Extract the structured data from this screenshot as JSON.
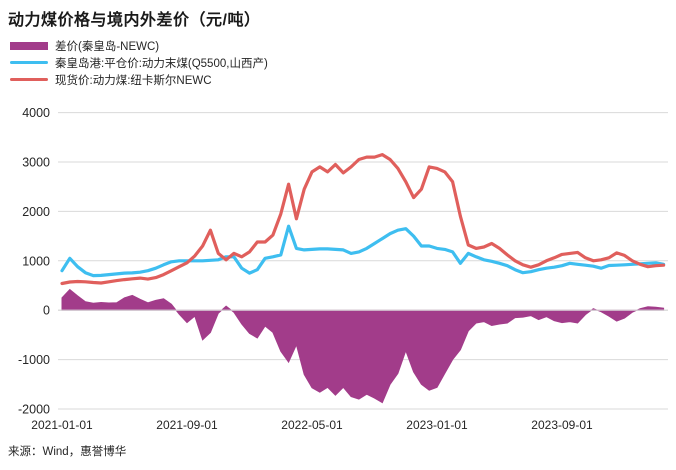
{
  "header": {
    "source_note": "来源：Wind，惠誉博华"
  },
  "chart_data": {
    "type": "line",
    "title": "动力煤价格与境内外差价（元/吨）",
    "unit": "元/吨",
    "x_start": "2021-01-01",
    "x_months_step": 0.5,
    "legend_position": "top-left",
    "grid": "horizontal-only",
    "grid_color": "#d9d9d9",
    "text_color": "#262626",
    "ylim": [
      -2000,
      4000
    ],
    "y_ticks": [
      4000,
      3000,
      2000,
      1000,
      0,
      -1000,
      -2000
    ],
    "x_ticks": [
      {
        "label": "2021-01-01",
        "month_offset": 0
      },
      {
        "label": "2021-09-01",
        "month_offset": 8
      },
      {
        "label": "2022-05-01",
        "month_offset": 16
      },
      {
        "label": "2023-01-01",
        "month_offset": 24
      },
      {
        "label": "2023-09-01",
        "month_offset": 32
      }
    ],
    "series": [
      {
        "name": "差价(秦皇岛-NEWC)",
        "type": "area",
        "color": "#A23C8A",
        "values": [
          250,
          420,
          290,
          170,
          140,
          155,
          145,
          150,
          250,
          300,
          220,
          150,
          200,
          230,
          120,
          -80,
          -250,
          -120,
          -600,
          -450,
          -60,
          80,
          -40,
          -280,
          -470,
          -560,
          -320,
          -450,
          -830,
          -1050,
          -700,
          -1300,
          -1570,
          -1660,
          -1560,
          -1720,
          -1560,
          -1750,
          -1800,
          -1700,
          -1780,
          -1870,
          -1500,
          -1280,
          -820,
          -1250,
          -1500,
          -1620,
          -1560,
          -1280,
          -1000,
          -800,
          -420,
          -260,
          -230,
          -310,
          -280,
          -260,
          -150,
          -140,
          -110,
          -190,
          -130,
          -210,
          -250,
          -230,
          -260,
          -90,
          30,
          -30,
          -120,
          -220,
          -160,
          -40,
          30,
          70,
          60,
          40
        ]
      },
      {
        "name": "秦皇岛港:平仓价:动力末煤(Q5500,山西产)",
        "type": "line",
        "color": "#3EBEF0",
        "values": [
          800,
          1050,
          880,
          760,
          700,
          705,
          720,
          735,
          750,
          755,
          770,
          800,
          850,
          920,
          980,
          1000,
          1000,
          1000,
          1000,
          1010,
          1020,
          1080,
          1080,
          850,
          750,
          820,
          1050,
          1080,
          1120,
          1700,
          1250,
          1220,
          1230,
          1240,
          1240,
          1230,
          1220,
          1150,
          1180,
          1250,
          1350,
          1450,
          1550,
          1620,
          1650,
          1500,
          1300,
          1300,
          1250,
          1230,
          1180,
          950,
          1150,
          1080,
          1020,
          990,
          950,
          900,
          820,
          760,
          780,
          820,
          850,
          870,
          900,
          950,
          930,
          910,
          890,
          850,
          905,
          910,
          920,
          930,
          940,
          950,
          960,
          930
        ]
      },
      {
        "name": "现货价:动力煤:纽卡斯尔NEWC",
        "type": "line",
        "color": "#E05F5C",
        "values": [
          540,
          570,
          580,
          575,
          560,
          550,
          575,
          600,
          620,
          635,
          650,
          630,
          660,
          720,
          800,
          880,
          960,
          1100,
          1300,
          1620,
          1150,
          1020,
          1150,
          1080,
          1180,
          1380,
          1380,
          1520,
          1950,
          2550,
          1850,
          2450,
          2800,
          2900,
          2800,
          2950,
          2780,
          2900,
          3050,
          3100,
          3100,
          3150,
          3050,
          2870,
          2600,
          2280,
          2450,
          2900,
          2870,
          2800,
          2600,
          1900,
          1320,
          1250,
          1280,
          1350,
          1250,
          1120,
          1000,
          920,
          870,
          920,
          1000,
          1060,
          1130,
          1150,
          1170,
          1060,
          1000,
          1020,
          1060,
          1160,
          1110,
          1000,
          930,
          880,
          900,
          910
        ]
      }
    ]
  }
}
